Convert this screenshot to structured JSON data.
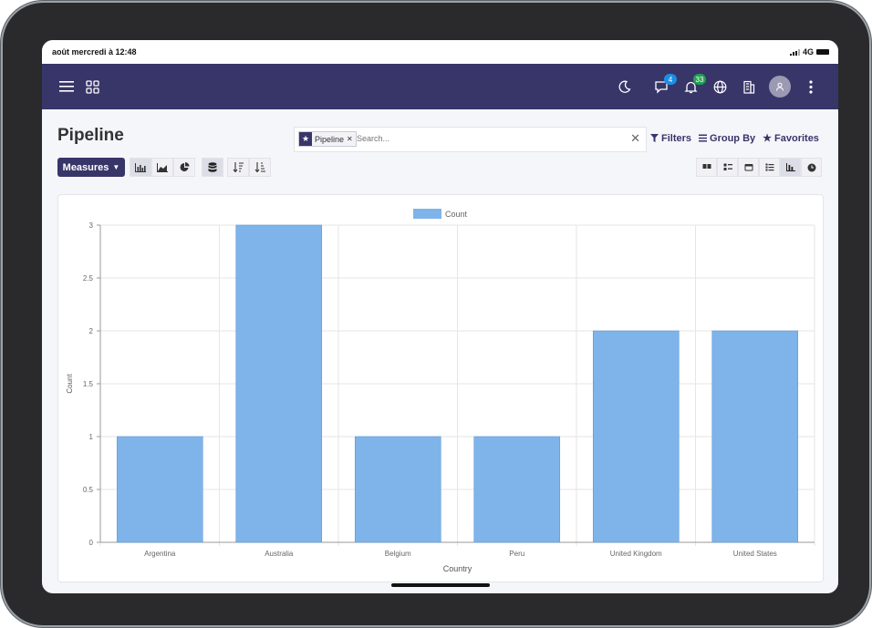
{
  "status_bar": {
    "time": "août mercredi à 12:48",
    "network": "4G"
  },
  "navbar": {
    "icons": [
      "menu-icon",
      "apps-icon",
      "moon-icon",
      "chat-icon",
      "bell-icon",
      "globe-icon",
      "building-icon",
      "avatar",
      "more-icon"
    ],
    "messages_badge": "4",
    "activities_badge": "33",
    "accent": "#383569"
  },
  "page": {
    "title": "Pipeline"
  },
  "search": {
    "facet_label": "Pipeline",
    "placeholder": "Search...",
    "filters_label": "Filters",
    "groupby_label": "Group By",
    "favorites_label": "Favorites"
  },
  "toolbar": {
    "measures_label": "Measures"
  },
  "chart_data": {
    "type": "bar",
    "categories": [
      "Argentina",
      "Australia",
      "Belgium",
      "Peru",
      "United Kingdom",
      "United States"
    ],
    "series": [
      {
        "name": "Count",
        "values": [
          1,
          3,
          1,
          1,
          2,
          2
        ]
      }
    ],
    "xlabel": "Country",
    "ylabel": "Count",
    "ylim": [
      0,
      3
    ],
    "yticks": [
      "0",
      "0.5",
      "1",
      "1.5",
      "2",
      "2.5",
      "3"
    ],
    "grid": true,
    "legend": "top-center",
    "bar_color": "#7eb4ea"
  }
}
